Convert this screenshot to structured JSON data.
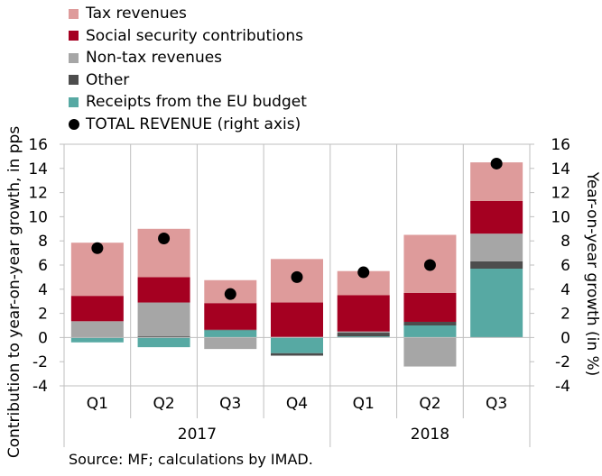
{
  "chart_data": {
    "type": "bar",
    "stacked": true,
    "categories": [
      "Q1",
      "Q2",
      "Q3",
      "Q4",
      "Q1",
      "Q2",
      "Q3"
    ],
    "year_groups": [
      {
        "label": "2017",
        "count": 4
      },
      {
        "label": "2018",
        "count": 3
      }
    ],
    "series": [
      {
        "name": "Receipts from the EU budget",
        "color": "#57a9a3",
        "values": [
          -0.4,
          -0.8,
          0.6,
          -1.3,
          0.1,
          1.0,
          5.7
        ]
      },
      {
        "name": "Other",
        "color": "#4d4d4d",
        "values": [
          0.05,
          0.1,
          0.05,
          -0.2,
          0.3,
          0.3,
          0.6
        ]
      },
      {
        "name": "Non-tax revenues",
        "color": "#a6a6a6",
        "values": [
          1.3,
          2.8,
          -0.95,
          0.05,
          0.1,
          -2.4,
          2.3
        ]
      },
      {
        "name": "Social security contributions",
        "color": "#a50021",
        "values": [
          2.1,
          2.1,
          2.2,
          2.85,
          3.0,
          2.4,
          2.7
        ]
      },
      {
        "name": "Tax revenues",
        "color": "#de9b9b",
        "values": [
          4.4,
          4.0,
          1.9,
          3.6,
          2.0,
          4.8,
          3.2
        ]
      }
    ],
    "total": {
      "name": "TOTAL REVENUE (right axis)",
      "color": "#000000",
      "values": [
        7.4,
        8.2,
        3.6,
        5.0,
        5.4,
        6.0,
        14.4
      ]
    },
    "legend_order": [
      "Tax revenues",
      "Social security contributions",
      "Non-tax revenues",
      "Other",
      "Receipts from the EU budget",
      "TOTAL REVENUE (right axis)"
    ],
    "ylabel": "Contribution to year-on-year growth, in pps",
    "y2label": "Year-on-year growth (in %)",
    "ylim": [
      -4,
      16
    ],
    "y2lim": [
      -4,
      16
    ],
    "yticks": [
      -4,
      -2,
      0,
      2,
      4,
      6,
      8,
      10,
      12,
      14,
      16
    ],
    "grid": false,
    "legend_position": "top-left"
  },
  "source": "Source: MF; calculations by IMAD."
}
